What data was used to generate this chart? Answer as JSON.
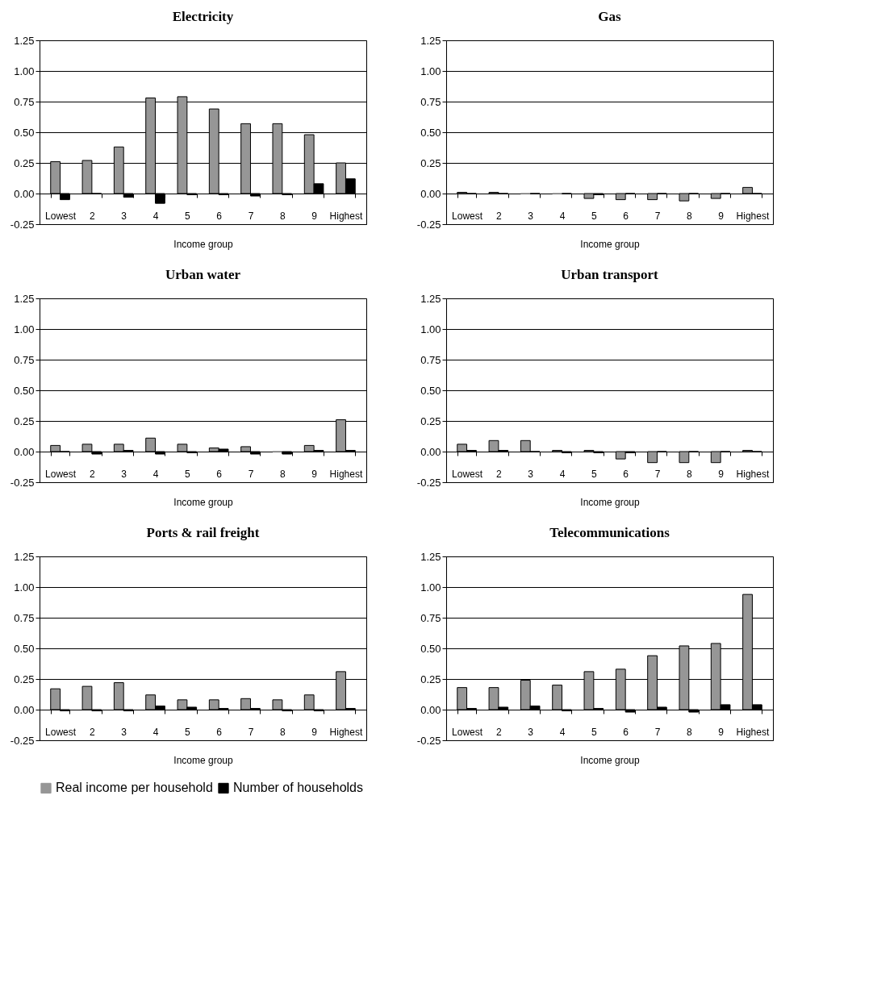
{
  "chart_data": [
    {
      "type": "bar",
      "title": "Electricity",
      "xlabel": "Income group",
      "categories": [
        "Lowest",
        "2",
        "3",
        "4",
        "5",
        "6",
        "7",
        "8",
        "9",
        "Highest"
      ],
      "ylim": [
        -0.25,
        1.25
      ],
      "yticks": [
        {
          "value": -0.25,
          "label": "-0.25"
        },
        {
          "value": 0,
          "label": "0.00"
        },
        0.25,
        {
          "value": 0.5,
          "label": "0.50"
        },
        0.75,
        {
          "value": 1,
          "label": "1.00"
        },
        1.25
      ],
      "grid": "y",
      "legend": "bottom",
      "series": [
        {
          "name": "Real income per household",
          "color": "#969696",
          "values": [
            0.26,
            0.27,
            0.38,
            0.78,
            0.79,
            0.69,
            0.57,
            0.57,
            0.48,
            0.25
          ]
        },
        {
          "name": "Number of households",
          "color": "#000000",
          "values": [
            -0.05,
            0.0,
            -0.03,
            -0.08,
            -0.01,
            -0.01,
            -0.02,
            -0.01,
            0.08,
            0.12
          ]
        }
      ]
    },
    {
      "type": "bar",
      "title": "Gas",
      "xlabel": "Income group",
      "categories": [
        "Lowest",
        "2",
        "3",
        "4",
        "5",
        "6",
        "7",
        "8",
        "9",
        "Highest"
      ],
      "ylim": [
        -0.25,
        1.25
      ],
      "yticks": [
        {
          "value": -0.25,
          "label": "-0.25"
        },
        {
          "value": 0,
          "label": "0.00"
        },
        0.25,
        {
          "value": 0.5,
          "label": "0.50"
        },
        0.75,
        {
          "value": 1,
          "label": "1.00"
        },
        1.25
      ],
      "grid": "y",
      "legend": "bottom",
      "series": [
        {
          "name": "Real income per household",
          "color": "#969696",
          "values": [
            0.01,
            0.01,
            0.0,
            0.0,
            -0.04,
            -0.05,
            -0.05,
            -0.06,
            -0.04,
            0.05
          ]
        },
        {
          "name": "Number of households",
          "color": "#000000",
          "values": [
            0.0,
            0.0,
            0.0,
            0.0,
            -0.01,
            0.0,
            0.0,
            0.0,
            0.0,
            0.0
          ]
        }
      ]
    },
    {
      "type": "bar",
      "title": "Urban water",
      "xlabel": "Income group",
      "categories": [
        "Lowest",
        "2",
        "3",
        "4",
        "5",
        "6",
        "7",
        "8",
        "9",
        "Highest"
      ],
      "ylim": [
        -0.25,
        1.25
      ],
      "yticks": [
        {
          "value": -0.25,
          "label": "-0.25"
        },
        {
          "value": 0,
          "label": "0.00"
        },
        0.25,
        {
          "value": 0.5,
          "label": "0.50"
        },
        0.75,
        {
          "value": 1,
          "label": "1.00"
        },
        1.25
      ],
      "grid": "y",
      "legend": "bottom",
      "series": [
        {
          "name": "Real income per household",
          "color": "#969696",
          "values": [
            0.05,
            0.06,
            0.06,
            0.11,
            0.06,
            0.03,
            0.04,
            0.0,
            0.05,
            0.26
          ]
        },
        {
          "name": "Number of households",
          "color": "#000000",
          "values": [
            0.0,
            -0.02,
            0.01,
            -0.02,
            -0.01,
            0.02,
            -0.02,
            -0.02,
            0.01,
            0.01
          ]
        }
      ]
    },
    {
      "type": "bar",
      "title": "Urban transport",
      "xlabel": "Income group",
      "categories": [
        "Lowest",
        "2",
        "3",
        "4",
        "5",
        "6",
        "7",
        "8",
        "9",
        "Highest"
      ],
      "ylim": [
        -0.25,
        1.25
      ],
      "yticks": [
        {
          "value": -0.25,
          "label": "-0.25"
        },
        {
          "value": 0,
          "label": "0.00"
        },
        0.25,
        {
          "value": 0.5,
          "label": "0.50"
        },
        0.75,
        {
          "value": 1,
          "label": "1.00"
        },
        1.25
      ],
      "grid": "y",
      "legend": "bottom",
      "series": [
        {
          "name": "Real income per household",
          "color": "#969696",
          "values": [
            0.06,
            0.09,
            0.09,
            0.01,
            0.01,
            -0.06,
            -0.09,
            -0.09,
            -0.09,
            0.01
          ]
        },
        {
          "name": "Number of households",
          "color": "#000000",
          "values": [
            0.01,
            0.01,
            0.0,
            -0.01,
            -0.01,
            -0.01,
            0.0,
            0.0,
            0.0,
            0.0
          ]
        }
      ]
    },
    {
      "type": "bar",
      "title": "Ports & rail freight",
      "xlabel": "Income group",
      "categories": [
        "Lowest",
        "2",
        "3",
        "4",
        "5",
        "6",
        "7",
        "8",
        "9",
        "Highest"
      ],
      "ylim": [
        -0.25,
        1.25
      ],
      "yticks": [
        {
          "value": -0.25,
          "label": "-0.25"
        },
        {
          "value": 0,
          "label": "0.00"
        },
        0.25,
        {
          "value": 0.5,
          "label": "0.50"
        },
        0.75,
        {
          "value": 1,
          "label": "1.00"
        },
        1.25
      ],
      "grid": "y",
      "legend": "bottom",
      "series": [
        {
          "name": "Real income per household",
          "color": "#969696",
          "values": [
            0.17,
            0.19,
            0.22,
            0.12,
            0.08,
            0.08,
            0.09,
            0.08,
            0.12,
            0.31
          ]
        },
        {
          "name": "Number of households",
          "color": "#000000",
          "values": [
            -0.01,
            -0.01,
            -0.01,
            0.03,
            0.02,
            0.01,
            0.01,
            -0.01,
            -0.01,
            0.01
          ]
        }
      ]
    },
    {
      "type": "bar",
      "title": "Telecommunications",
      "xlabel": "Income group",
      "categories": [
        "Lowest",
        "2",
        "3",
        "4",
        "5",
        "6",
        "7",
        "8",
        "9",
        "Highest"
      ],
      "ylim": [
        -0.25,
        1.25
      ],
      "yticks": [
        {
          "value": -0.25,
          "label": "-0.25"
        },
        {
          "value": 0,
          "label": "0.00"
        },
        0.25,
        {
          "value": 0.5,
          "label": "0.50"
        },
        0.75,
        {
          "value": 1,
          "label": "1.00"
        },
        1.25
      ],
      "grid": "y",
      "legend": "bottom",
      "series": [
        {
          "name": "Real income per household",
          "color": "#969696",
          "values": [
            0.18,
            0.18,
            0.24,
            0.2,
            0.31,
            0.33,
            0.44,
            0.52,
            0.54,
            0.94
          ]
        },
        {
          "name": "Number of households",
          "color": "#000000",
          "values": [
            0.01,
            0.02,
            0.03,
            -0.01,
            0.01,
            -0.02,
            0.02,
            -0.02,
            0.04,
            0.04
          ]
        }
      ]
    }
  ]
}
